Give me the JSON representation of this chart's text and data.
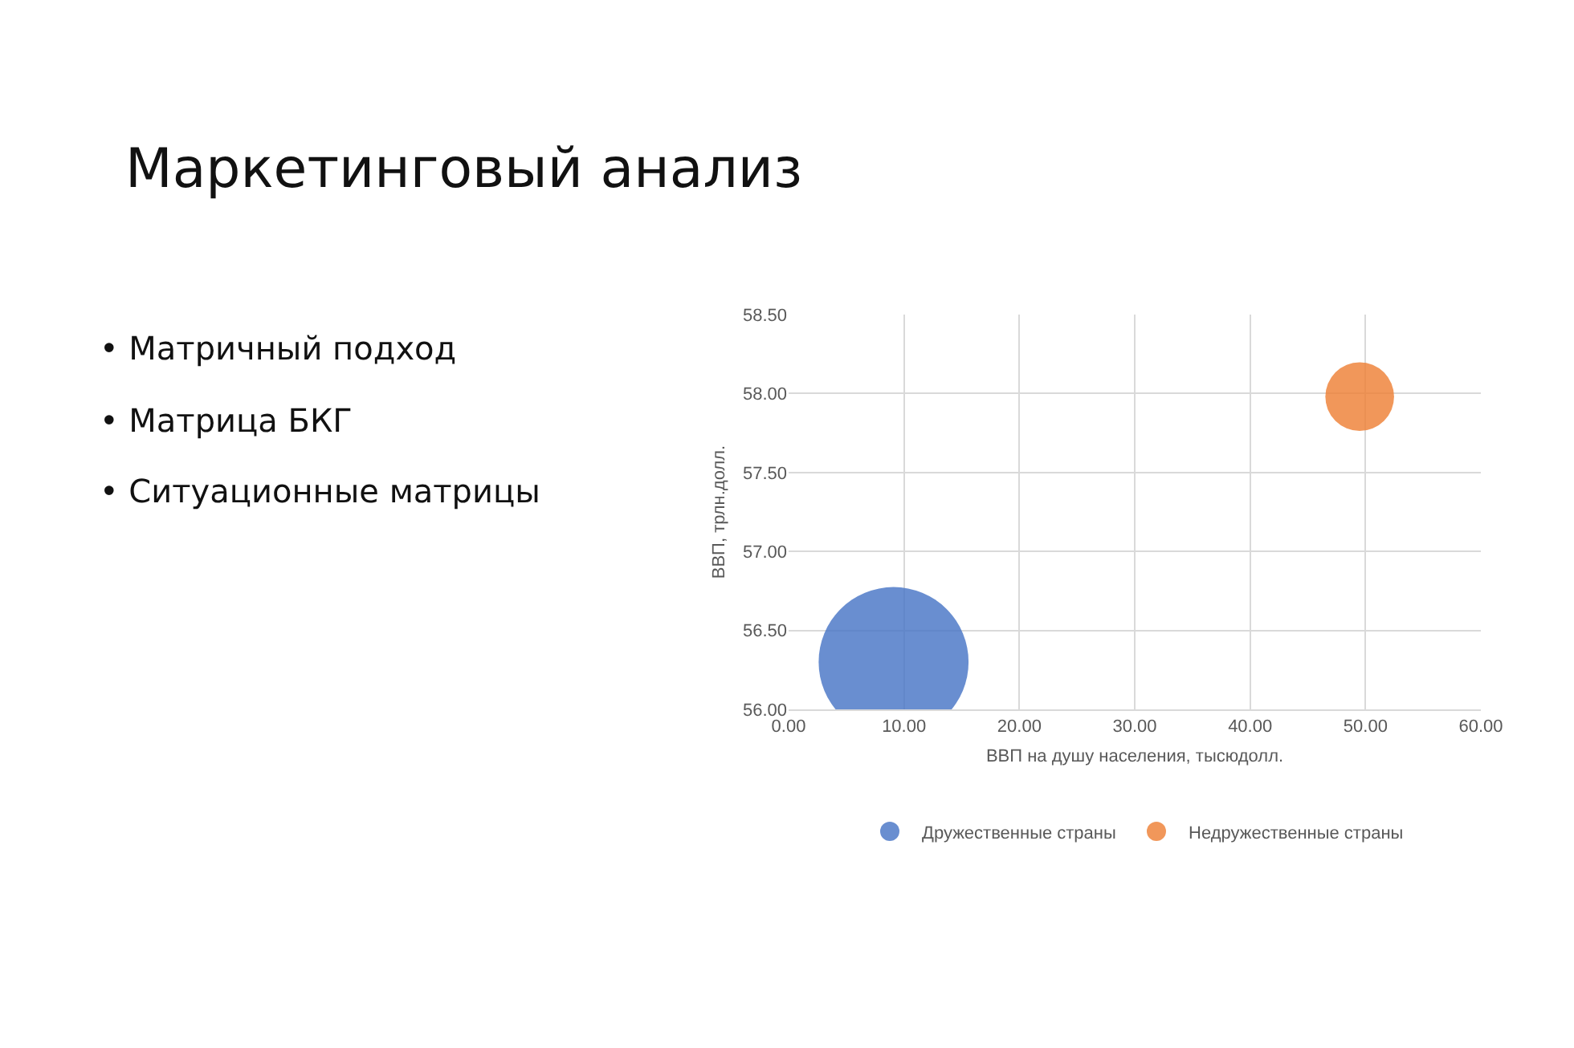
{
  "chart_data": {
    "type": "bubble",
    "title": "Маркетинговый анализ",
    "xlabel": "ВВП на душу населения, тысюдолл.",
    "ylabel": "ВВП, трлн.долл.",
    "annotations": [
      "• Матричный подход",
      "• Матрица БКГ",
      "• Ситуационные матрицы"
    ],
    "series": [
      {
        "name": "Дружественные страны",
        "color": "#4472c4",
        "x": [
          9.1
        ],
        "values": [
          56.3
        ],
        "sizes": [
          1
        ]
      },
      {
        "name": "Недружественные страны",
        "color": "#ed7d31",
        "x": [
          49.5
        ],
        "values": [
          57.98
        ],
        "sizes": [
          0.21
        ]
      }
    ],
    "xlim": [
      0,
      60
    ],
    "xticks": [
      {
        "value": 0,
        "label": "0.00"
      },
      {
        "value": 10,
        "label": "10.00"
      },
      {
        "value": 20,
        "label": "20.00"
      },
      {
        "value": 30,
        "label": "30.00"
      },
      {
        "value": 40,
        "label": "40.00"
      },
      {
        "value": 50,
        "label": "50.00"
      },
      {
        "value": 60,
        "label": "60.00"
      }
    ],
    "ylim": [
      56,
      58.5
    ],
    "yticks": [
      {
        "value": 56,
        "label": "56.00"
      },
      {
        "value": 56.5,
        "label": "56.50"
      },
      {
        "value": 57,
        "label": "57.00"
      },
      {
        "value": 57.5,
        "label": "57.50"
      },
      {
        "value": 58,
        "label": "58.00"
      },
      {
        "value": 58.5,
        "label": "58.50"
      }
    ],
    "grid": true,
    "legend": "bottom"
  }
}
